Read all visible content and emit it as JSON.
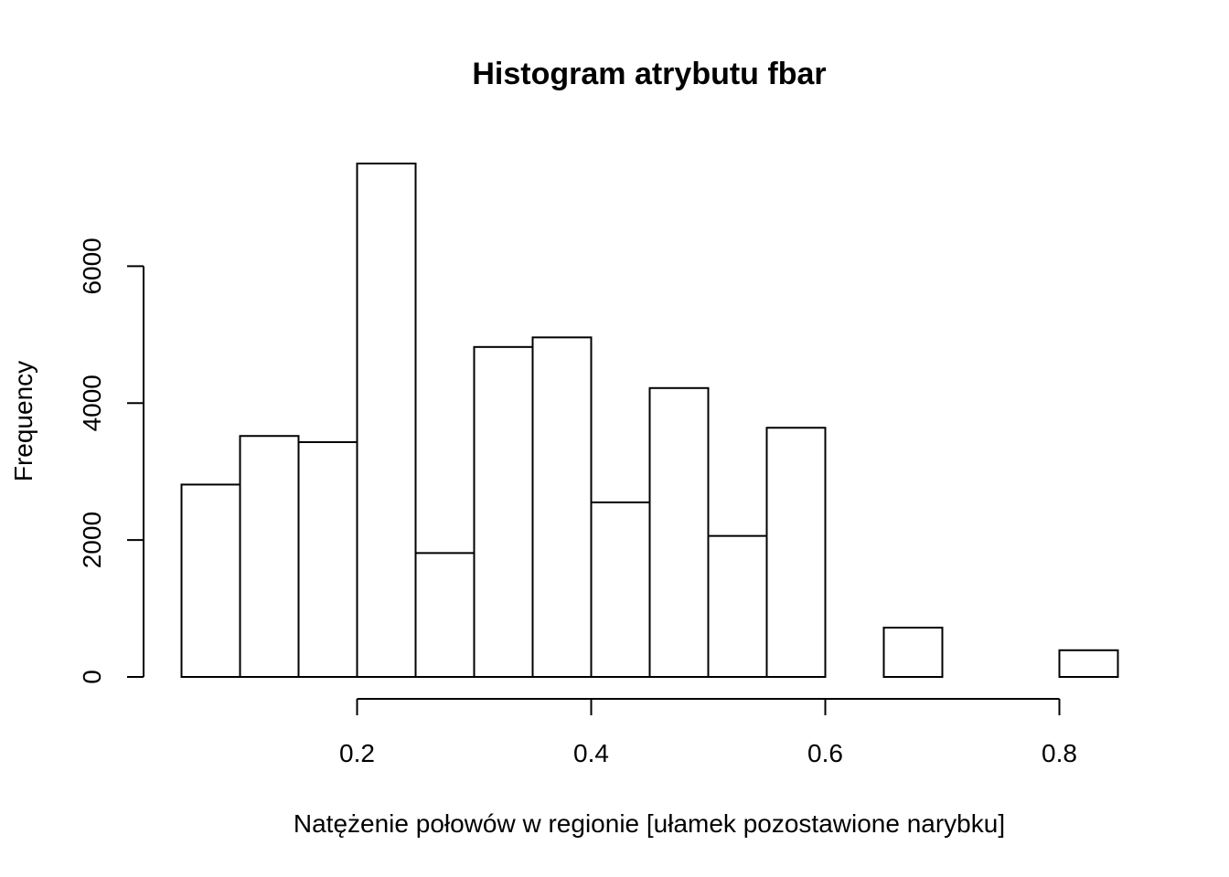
{
  "chart_data": {
    "type": "bar",
    "title": "Histogram atrybutu fbar",
    "xlabel": "Natężenie połowów w regionie [ułamek pozostawione narybku]",
    "ylabel": "Frequency",
    "bin_edges": [
      0.05,
      0.1,
      0.15,
      0.2,
      0.25,
      0.3,
      0.35,
      0.4,
      0.45,
      0.5,
      0.55,
      0.6,
      0.65,
      0.7,
      0.75,
      0.8,
      0.85
    ],
    "values": [
      2810,
      3520,
      3430,
      7500,
      1810,
      4820,
      4960,
      2550,
      4220,
      2060,
      3640,
      0,
      720,
      0,
      0,
      390
    ],
    "xlim": [
      0.05,
      0.85
    ],
    "ylim": [
      0,
      7500
    ],
    "x_ticks": [
      0.2,
      0.4,
      0.6,
      0.8
    ],
    "x_tick_labels": [
      "0.2",
      "0.4",
      "0.6",
      "0.8"
    ],
    "y_ticks": [
      0,
      2000,
      4000,
      6000
    ],
    "y_tick_labels": [
      "0",
      "2000",
      "4000",
      "6000"
    ],
    "grid": false,
    "fill_color": "#ffffff",
    "stroke_color": "#000000"
  }
}
